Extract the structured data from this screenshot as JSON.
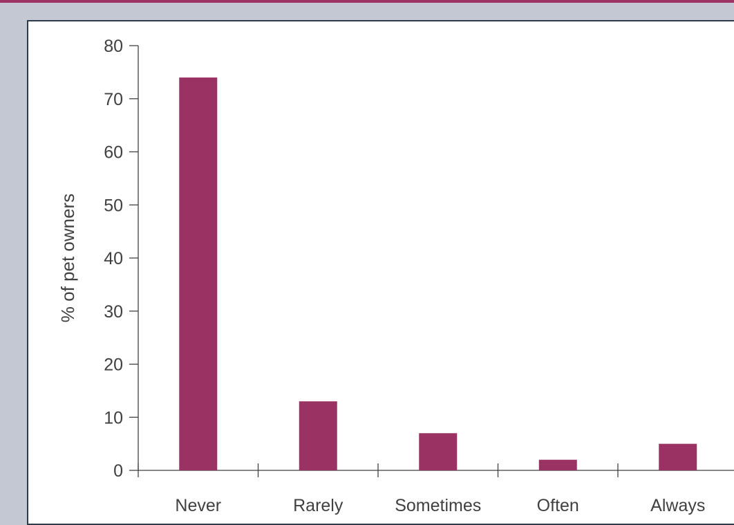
{
  "chart_data": {
    "type": "bar",
    "categories": [
      "Never",
      "Rarely",
      "Sometimes",
      "Often",
      "Always"
    ],
    "values": [
      74,
      13,
      7,
      2,
      5
    ],
    "xlabel": "",
    "ylabel": "% of pet owners",
    "ylim": [
      0,
      80
    ],
    "yticks": [
      0,
      10,
      20,
      30,
      40,
      50,
      60,
      70,
      80
    ],
    "grid": false,
    "legend": "none",
    "colors": {
      "bar": "#9b3264",
      "axis": "#404040",
      "text": "#404040",
      "background": "#c3c8d3",
      "panel": "#ffffff",
      "panel_border": "#2b3a4c",
      "accent_rule": "#9c3566"
    }
  }
}
